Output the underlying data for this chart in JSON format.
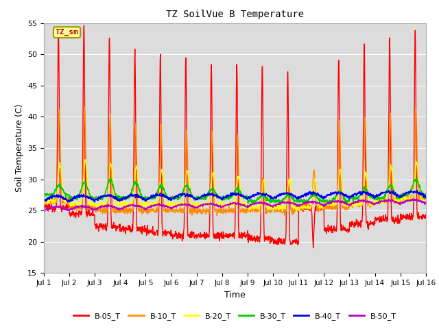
{
  "title": "TZ SoilVue B Temperature",
  "xlabel": "Time",
  "ylabel": "Soil Temperature (C)",
  "ylim": [
    15,
    55
  ],
  "xlim": [
    0,
    15
  ],
  "xtick_labels": [
    "Jul 1",
    "Jul 2",
    "Jul 3",
    "Jul 4",
    "Jul 5",
    "Jul 6",
    "Jul 7",
    "Jul 8",
    "Jul 9",
    "Jul 10",
    "Jul 11",
    "Jul 12",
    "Jul 13",
    "Jul 14",
    "Jul 15",
    "Jul 16"
  ],
  "xtick_positions": [
    0,
    1,
    2,
    3,
    4,
    5,
    6,
    7,
    8,
    9,
    10,
    11,
    12,
    13,
    14,
    15
  ],
  "ytick_positions": [
    15,
    20,
    25,
    30,
    35,
    40,
    45,
    50,
    55
  ],
  "annotation_text": "TZ_sm",
  "series": {
    "B-05_T": {
      "color": "#FF0000",
      "linewidth": 1.0
    },
    "B-10_T": {
      "color": "#FF8C00",
      "linewidth": 1.0
    },
    "B-20_T": {
      "color": "#FFFF00",
      "linewidth": 1.0
    },
    "B-30_T": {
      "color": "#00CC00",
      "linewidth": 1.2
    },
    "B-40_T": {
      "color": "#0000EE",
      "linewidth": 1.2
    },
    "B-50_T": {
      "color": "#BB00BB",
      "linewidth": 1.2
    }
  },
  "legend_order": [
    "B-05_T",
    "B-10_T",
    "B-20_T",
    "B-30_T",
    "B-40_T",
    "B-50_T"
  ],
  "plot_bg": "#DCDCDC",
  "fig_bg": "#FFFFFF",
  "grid_color": "#FFFFFF",
  "b05_day_peaks": [
    54.0,
    54.5,
    52.8,
    50.5,
    49.5,
    49.5,
    48.5,
    48.5,
    48.0,
    47.5,
    19.5,
    49.5,
    52.0,
    52.5,
    53.8
  ],
  "b05_day_troughs": [
    25.5,
    24.5,
    22.5,
    22.0,
    21.5,
    21.0,
    21.0,
    21.0,
    20.5,
    20.0,
    25.5,
    22.0,
    23.0,
    23.5,
    24.0
  ],
  "b10_day_peaks": [
    41.0,
    41.5,
    40.5,
    39.0,
    38.5,
    38.0,
    37.5,
    37.0,
    30.0,
    30.0,
    31.5,
    39.5,
    40.0,
    40.5,
    41.0
  ],
  "b10_day_troughs": [
    26.5,
    25.5,
    25.0,
    25.0,
    25.0,
    25.0,
    25.0,
    25.0,
    25.0,
    25.0,
    25.5,
    25.5,
    26.0,
    26.5,
    27.0
  ],
  "b20_day_peaks": [
    32.5,
    33.0,
    32.5,
    32.0,
    31.5,
    31.5,
    31.0,
    30.5,
    30.0,
    30.0,
    30.0,
    31.5,
    31.0,
    32.0,
    32.5
  ],
  "b20_day_troughs": [
    26.5,
    26.0,
    26.0,
    26.0,
    26.0,
    26.0,
    26.0,
    26.0,
    25.5,
    25.5,
    25.5,
    26.0,
    26.0,
    26.5,
    27.0
  ],
  "b30_day_peaks": [
    29.0,
    29.5,
    30.0,
    29.5,
    29.0,
    29.0,
    28.5,
    28.5,
    27.5,
    27.5,
    27.5,
    28.0,
    28.5,
    29.0,
    30.0
  ],
  "b30_day_troughs": [
    27.5,
    27.0,
    27.0,
    27.0,
    27.0,
    27.0,
    27.0,
    27.0,
    26.5,
    26.5,
    26.5,
    26.5,
    27.0,
    27.0,
    27.5
  ]
}
